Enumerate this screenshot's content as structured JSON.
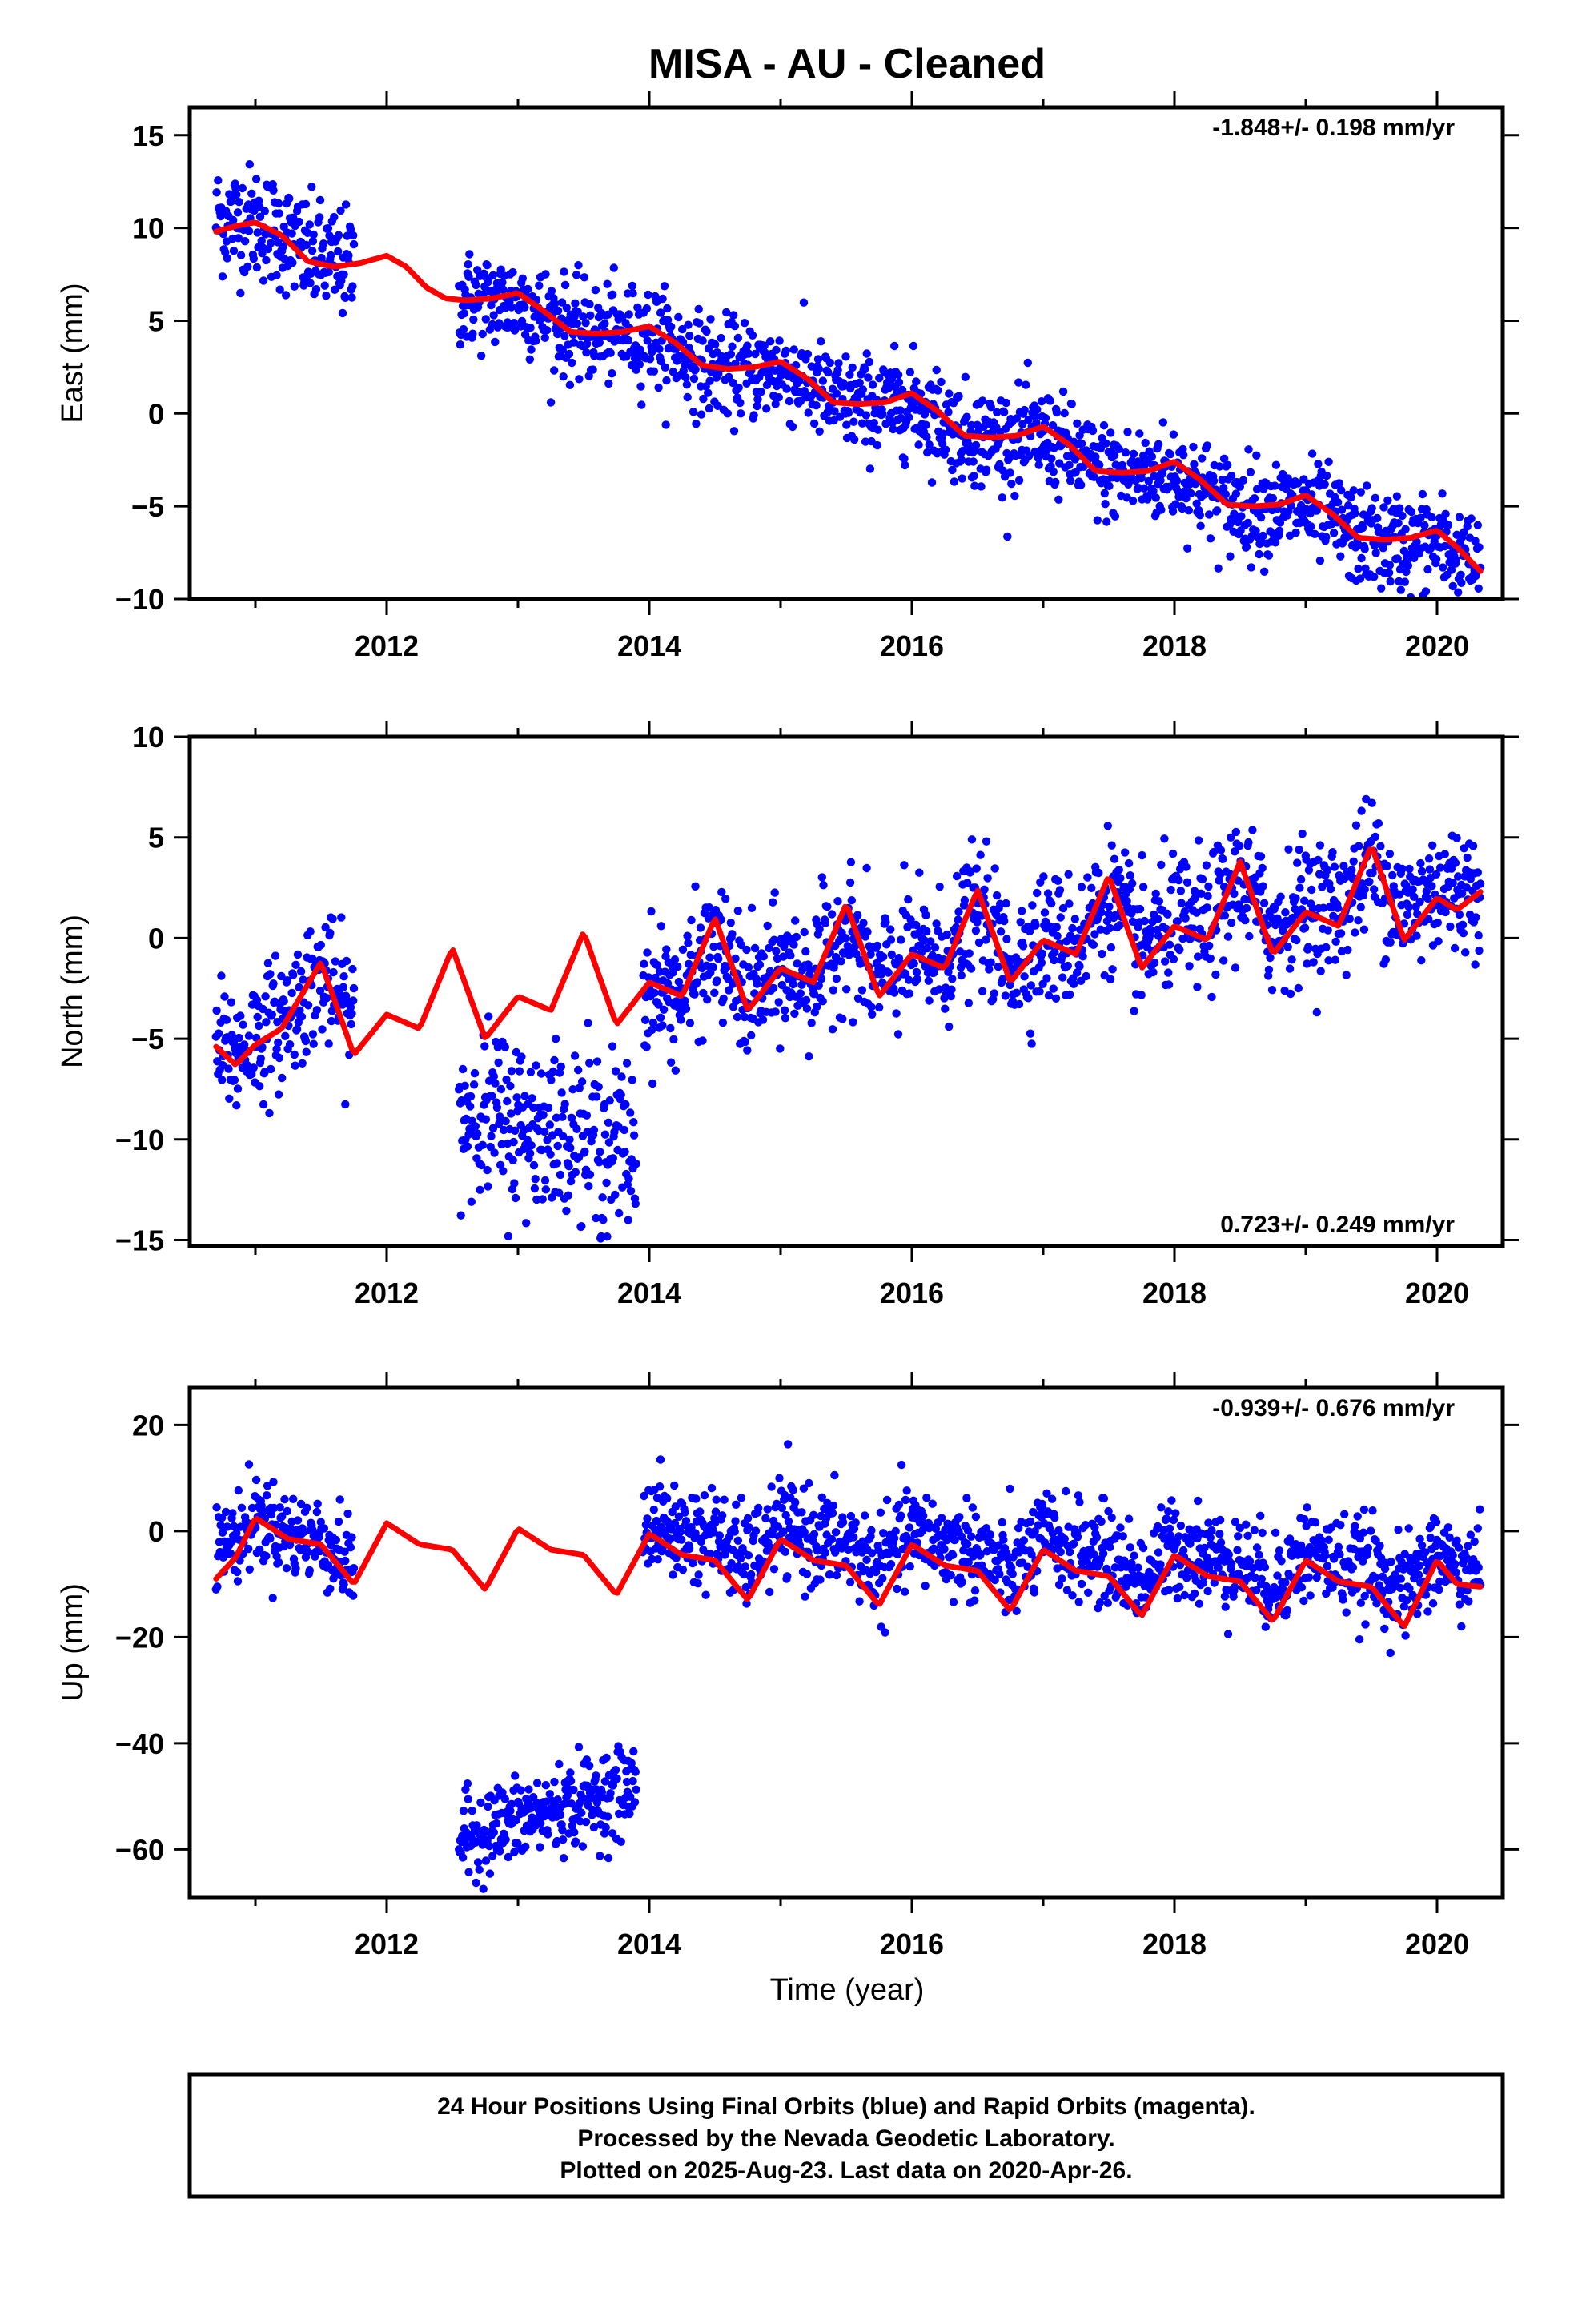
{
  "title": "MISA  - AU - Cleaned",
  "xlabel": "Time (year)",
  "footer": {
    "line1": "24 Hour Positions Using Final Orbits (blue) and Rapid Orbits (magenta).",
    "line2": "Processed by the Nevada Geodetic Laboratory.",
    "line3": "Plotted on 2025-Aug-23. Last data on 2020-Apr-26."
  },
  "colors": {
    "points": "#0000ff",
    "model": "#ff0000",
    "frame": "#000000"
  },
  "chart_data": [
    {
      "type": "scatter",
      "component": "east",
      "ylabel": "East (mm)",
      "xlim": [
        2010.5,
        2020.5
      ],
      "ylim": [
        -10,
        16.5
      ],
      "xticks": [
        2012,
        2014,
        2016,
        2018,
        2020
      ],
      "yticks": [
        -10,
        -5,
        0,
        5,
        10,
        15
      ],
      "ytick_labels": [
        "−10",
        "−5",
        "0",
        "5",
        "10",
        "15"
      ],
      "rate_label": "-1.848+/- 0.198 mm/yr",
      "rate_position": "top-right",
      "data_segments": [
        {
          "x": [
            2010.7,
            2011.75
          ],
          "center": [
            11.5,
            7.8
          ],
          "spread": 1.5
        },
        {
          "x": [
            2012.55,
            2020.33
          ],
          "center": [
            6.3,
            -8.5
          ],
          "spread": 1.3
        }
      ],
      "model_curve": {
        "x": [
          2010.7,
          2010.85,
          2011.0,
          2011.2,
          2011.4,
          2011.6,
          2011.8,
          2012.0,
          2012.15,
          2012.3,
          2012.45,
          2012.6,
          2012.8,
          2013.0,
          2013.2,
          2013.4,
          2013.6,
          2013.8,
          2014.0,
          2014.2,
          2014.4,
          2014.6,
          2014.8,
          2015.0,
          2015.2,
          2015.4,
          2015.6,
          2015.8,
          2016.0,
          2016.2,
          2016.4,
          2016.6,
          2016.8,
          2017.0,
          2017.2,
          2017.4,
          2017.6,
          2017.8,
          2018.0,
          2018.2,
          2018.4,
          2018.6,
          2018.8,
          2019.0,
          2019.2,
          2019.4,
          2019.6,
          2019.8,
          2020.0,
          2020.15,
          2020.33
        ],
        "y": [
          9.8,
          10.1,
          10.3,
          9.6,
          8.2,
          7.9,
          8.1,
          8.5,
          7.9,
          6.8,
          6.2,
          6.1,
          6.2,
          6.5,
          5.5,
          4.4,
          4.3,
          4.4,
          4.7,
          3.8,
          2.6,
          2.4,
          2.5,
          2.8,
          1.9,
          0.6,
          0.5,
          0.6,
          1.1,
          0.1,
          -1.2,
          -1.3,
          -1.2,
          -0.7,
          -1.7,
          -3.1,
          -3.2,
          -3.1,
          -2.6,
          -3.6,
          -4.9,
          -5.0,
          -4.9,
          -4.4,
          -5.4,
          -6.7,
          -6.8,
          -6.7,
          -6.3,
          -7.2,
          -8.5
        ]
      }
    },
    {
      "type": "scatter",
      "component": "north",
      "ylabel": "North (mm)",
      "xlim": [
        2010.5,
        2020.5
      ],
      "ylim": [
        -15.3,
        10
      ],
      "xticks": [
        2012,
        2014,
        2016,
        2018,
        2020
      ],
      "yticks": [
        -15,
        -10,
        -5,
        0,
        5,
        10
      ],
      "ytick_labels": [
        "−15",
        "−10",
        "−5",
        "0",
        "5",
        "10"
      ],
      "rate_label": "0.723+/- 0.249 mm/yr",
      "rate_position": "bottom-right",
      "data_segments": [
        {
          "x": [
            2010.7,
            2011.75
          ],
          "center": [
            -5.5,
            -1.5
          ],
          "spread": 1.6
        },
        {
          "x": [
            2012.55,
            2013.9
          ],
          "center": [
            -8.5,
            -10.5
          ],
          "spread": 2.2
        },
        {
          "x": [
            2013.95,
            2020.33
          ],
          "center": [
            -3.0,
            3.8
          ],
          "spread": 1.6
        }
      ],
      "model_curve": {
        "x": [
          2010.7,
          2010.85,
          2011.0,
          2011.2,
          2011.5,
          2011.75,
          2012.0,
          2012.25,
          2012.5,
          2012.75,
          2013.0,
          2013.25,
          2013.5,
          2013.75,
          2014.0,
          2014.25,
          2014.5,
          2014.75,
          2015.0,
          2015.25,
          2015.5,
          2015.75,
          2016.0,
          2016.25,
          2016.5,
          2016.75,
          2017.0,
          2017.25,
          2017.5,
          2017.75,
          2018.0,
          2018.25,
          2018.5,
          2018.75,
          2019.0,
          2019.25,
          2019.5,
          2019.75,
          2020.0,
          2020.15,
          2020.33
        ],
        "y": [
          -5.4,
          -6.3,
          -5.3,
          -4.5,
          -1.2,
          -5.8,
          -3.8,
          -4.5,
          -0.5,
          -5.0,
          -2.9,
          -3.6,
          0.3,
          -4.3,
          -2.2,
          -2.9,
          1.0,
          -3.6,
          -1.5,
          -2.2,
          1.7,
          -2.9,
          -0.8,
          -1.5,
          2.4,
          -2.2,
          -0.1,
          -0.8,
          3.1,
          -1.5,
          0.6,
          -0.1,
          3.8,
          -0.8,
          1.3,
          0.6,
          4.6,
          -0.1,
          2.0,
          1.4,
          2.3
        ]
      }
    },
    {
      "type": "scatter",
      "component": "up",
      "ylabel": "Up (mm)",
      "xlim": [
        2010.5,
        2020.5
      ],
      "ylim": [
        -69,
        27
      ],
      "xticks": [
        2012,
        2014,
        2016,
        2018,
        2020
      ],
      "yticks": [
        -60,
        -40,
        -20,
        0,
        20
      ],
      "ytick_labels": [
        "−60",
        "−40",
        "−20",
        "0",
        "20"
      ],
      "rate_label": "-0.939+/- 0.676 mm/yr",
      "rate_position": "top-right",
      "data_segments": [
        {
          "x": [
            2010.7,
            2011.75
          ],
          "center": [
            5.0,
            -3.0
          ],
          "spread": 4.0
        },
        {
          "x": [
            2012.55,
            2013.9
          ],
          "center": [
            -58.0,
            -48.0
          ],
          "spread": 4.0
        },
        {
          "x": [
            2013.95,
            2020.33
          ],
          "center": [
            6.0,
            -3.0
          ],
          "spread": 4.5
        }
      ],
      "model_curve": {
        "x": [
          2010.7,
          2010.85,
          2011.0,
          2011.25,
          2011.5,
          2011.75,
          2012.0,
          2012.25,
          2012.5,
          2012.75,
          2013.0,
          2013.25,
          2013.5,
          2013.75,
          2014.0,
          2014.25,
          2014.5,
          2014.75,
          2015.0,
          2015.25,
          2015.5,
          2015.75,
          2016.0,
          2016.25,
          2016.5,
          2016.75,
          2017.0,
          2017.25,
          2017.5,
          2017.75,
          2018.0,
          2018.25,
          2018.5,
          2018.75,
          2019.0,
          2019.25,
          2019.5,
          2019.75,
          2020.0,
          2020.15,
          2020.33
        ],
        "y": [
          -9.0,
          -5.0,
          2.5,
          -1.5,
          -2.5,
          -10.0,
          1.5,
          -2.5,
          -3.5,
          -11.0,
          0.5,
          -3.5,
          -4.5,
          -12.0,
          -0.5,
          -4.5,
          -5.5,
          -13.0,
          -1.5,
          -5.5,
          -6.5,
          -14.0,
          -2.5,
          -6.5,
          -7.5,
          -15.0,
          -3.5,
          -7.5,
          -8.5,
          -16.0,
          -4.5,
          -8.5,
          -9.5,
          -17.0,
          -5.5,
          -9.5,
          -10.5,
          -18.0,
          -5.5,
          -10.0,
          -10.5
        ]
      }
    }
  ]
}
